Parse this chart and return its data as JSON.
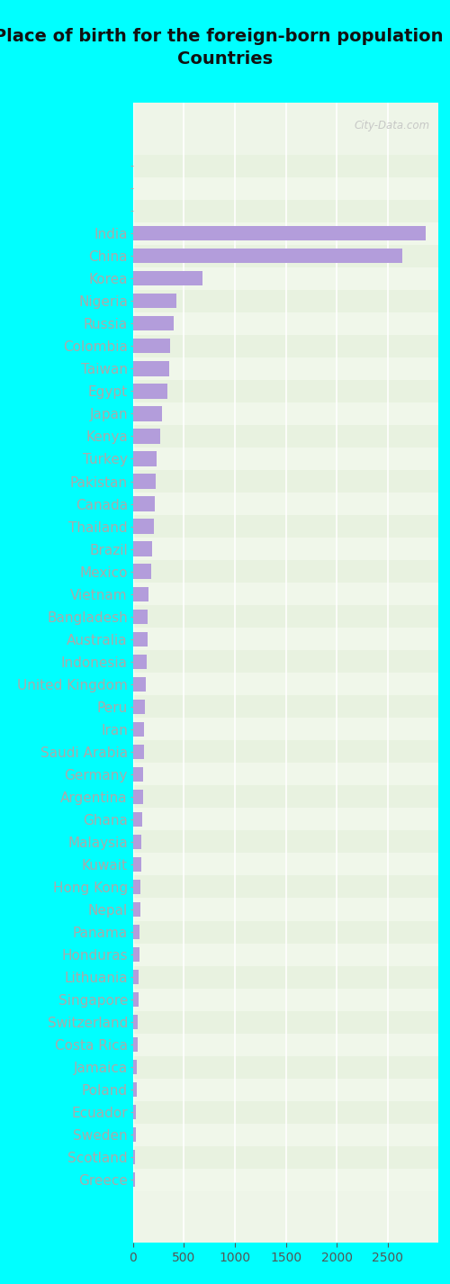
{
  "title": "Place of birth for the foreign-born population -\nCountries",
  "categories": [
    "",
    "",
    "",
    "India",
    "China",
    "Korea",
    "Nigeria",
    "Russia",
    "Colombia",
    "Taiwan",
    "Egypt",
    "Japan",
    "Kenya",
    "Turkey",
    "Pakistan",
    "Canada",
    "Thailand",
    "Brazil",
    "Mexico",
    "Vietnam",
    "Bangladesh",
    "Australia",
    "Indonesia",
    "United Kingdom",
    "Peru",
    "Iran",
    "Saudi Arabia",
    "Germany",
    "Argentina",
    "Ghana",
    "Malaysia",
    "Kuwait",
    "Hong Kong",
    "Nepal",
    "Panama",
    "Honduras",
    "Lithuania",
    "Singapore",
    "Switzerland",
    "Costa Rica",
    "Jamaica",
    "Poland",
    "Ecuador",
    "Sweden",
    "Scotland",
    "Greece"
  ],
  "values": [
    0,
    0,
    0,
    2870,
    2640,
    680,
    430,
    405,
    370,
    355,
    340,
    285,
    265,
    238,
    225,
    215,
    205,
    190,
    180,
    155,
    148,
    143,
    138,
    132,
    118,
    112,
    108,
    104,
    98,
    93,
    88,
    84,
    78,
    74,
    68,
    64,
    58,
    54,
    50,
    46,
    42,
    38,
    34,
    30,
    26,
    22
  ],
  "bar_color": "#b39ddb",
  "title_bg_color": "#00ffff",
  "chart_bg_color": "#eef5e8",
  "row_even_color": "#e8f2e0",
  "row_odd_color": "#f0f7ea",
  "xlim": [
    0,
    3000
  ],
  "xticks": [
    0,
    500,
    1000,
    1500,
    2000,
    2500
  ],
  "watermark": "City-Data.com",
  "title_fontsize": 14,
  "label_fontsize": 11,
  "tick_fontsize": 10
}
